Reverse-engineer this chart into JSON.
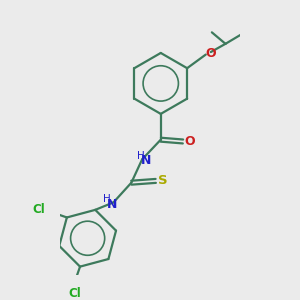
{
  "background_color": "#ebebeb",
  "bond_color": "#3d7a5c",
  "N_color": "#2020cc",
  "O_color": "#cc2020",
  "S_color": "#aaaa00",
  "Cl_color": "#22aa22",
  "line_width": 1.6,
  "dbo": 0.055,
  "fig_w": 3.0,
  "fig_h": 3.0,
  "dpi": 100,
  "xlim": [
    -2.5,
    2.5
  ],
  "ylim": [
    -3.8,
    3.8
  ]
}
